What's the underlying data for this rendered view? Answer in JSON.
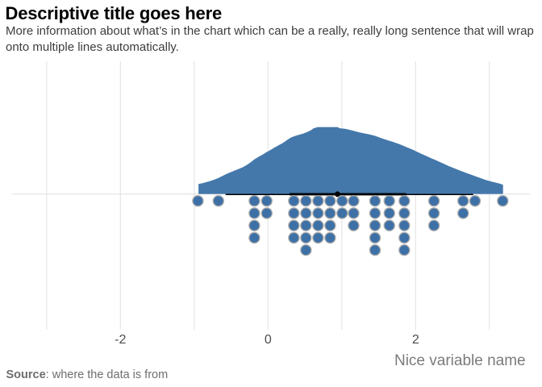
{
  "header": {
    "title": "Descriptive title goes here",
    "subtitle": "More information about what’s in the chart which can be a really, really long sentence that will wrap onto multiple lines automatically.",
    "subtitle_lines": [
      "More information about what’s in the chart which can be a really, really long sentence that will wrap",
      "onto multiple lines automatically."
    ]
  },
  "footer": {
    "source_label": "Source",
    "source_text": ": where the data is from"
  },
  "chart_data": {
    "type": "area",
    "subtype": "raincloud: half-eye density curve + median/interval line + stacked dot plot (side = bottom)",
    "title": "Descriptive title goes here",
    "xlabel": "Nice variable name",
    "ylabel": "",
    "x_axis": {
      "tick_values": [
        -2,
        0,
        2
      ],
      "tick_labels": [
        "-2",
        "0",
        "2"
      ],
      "gridline_values": [
        -3,
        -2,
        -1,
        0,
        1,
        2,
        3
      ],
      "xlim": [
        -3.47,
        3.55
      ],
      "grid": "vertical gridlines plus one horizontal gridline at the dot/density baseline"
    },
    "colors": {
      "density_fill": "#4478ab",
      "dot_fill": "#3d70a6",
      "dot_stroke": "#a9a9a9",
      "interval_line": "#000000",
      "median_point": "#000000",
      "gridline": "#e5e5e5",
      "background": "#ffffff"
    },
    "density": {
      "bandwidth_hint": 0.35,
      "x": [
        -0.942,
        -0.891,
        -0.836,
        -0.781,
        -0.727,
        -0.672,
        -0.617,
        -0.563,
        -0.508,
        -0.454,
        -0.399,
        -0.344,
        -0.29,
        -0.235,
        -0.18,
        -0.126,
        -0.071,
        -0.016,
        0.038,
        0.093,
        0.148,
        0.202,
        0.257,
        0.311,
        0.366,
        0.421,
        0.475,
        0.53,
        0.585,
        0.617,
        0.672,
        0.749,
        0.803,
        0.858,
        0.913,
        0.945,
        0.967,
        1.044,
        1.077,
        1.131,
        1.186,
        1.24,
        1.295,
        1.35,
        1.404,
        1.459,
        1.514,
        1.568,
        1.623,
        1.678,
        1.732,
        1.787,
        1.842,
        1.896,
        1.951,
        2.005,
        2.06,
        2.115,
        2.169,
        2.224,
        2.279,
        2.333,
        2.388,
        2.443,
        2.497,
        2.552,
        2.607,
        2.661,
        2.716,
        2.77,
        2.825,
        2.88,
        2.934,
        2.989,
        3.044,
        3.098,
        3.153,
        3.185
      ],
      "h": [
        0.148,
        0.162,
        0.177,
        0.194,
        0.215,
        0.24,
        0.27,
        0.299,
        0.325,
        0.349,
        0.373,
        0.399,
        0.432,
        0.475,
        0.521,
        0.557,
        0.59,
        0.628,
        0.662,
        0.697,
        0.73,
        0.764,
        0.806,
        0.844,
        0.867,
        0.885,
        0.903,
        0.925,
        0.954,
        0.982,
        1.0,
        1.0,
        1.0,
        1.0,
        1.0,
        1.0,
        0.983,
        0.974,
        0.966,
        0.952,
        0.936,
        0.921,
        0.909,
        0.896,
        0.882,
        0.865,
        0.843,
        0.822,
        0.803,
        0.784,
        0.764,
        0.742,
        0.717,
        0.692,
        0.666,
        0.638,
        0.61,
        0.582,
        0.555,
        0.529,
        0.503,
        0.476,
        0.448,
        0.42,
        0.395,
        0.371,
        0.348,
        0.325,
        0.303,
        0.281,
        0.259,
        0.237,
        0.216,
        0.197,
        0.181,
        0.166,
        0.151,
        0.137
      ]
    },
    "point_interval": {
      "median": 0.941,
      "interval_thick": [
        0.29,
        1.874
      ],
      "interval_thin": [
        -0.575,
        2.78
      ]
    },
    "dots": {
      "side": "bottom",
      "total": 50,
      "stacks": [
        {
          "x": -0.95,
          "count": 1
        },
        {
          "x": -0.672,
          "count": 1
        },
        {
          "x": -0.185,
          "count": 4
        },
        {
          "x": -0.017,
          "count": 2
        },
        {
          "x": 0.35,
          "count": 4
        },
        {
          "x": 0.514,
          "count": 5
        },
        {
          "x": 0.678,
          "count": 4
        },
        {
          "x": 0.842,
          "count": 4
        },
        {
          "x": 1.005,
          "count": 2
        },
        {
          "x": 1.16,
          "count": 3
        },
        {
          "x": 1.45,
          "count": 5
        },
        {
          "x": 1.644,
          "count": 3
        },
        {
          "x": 1.847,
          "count": 5
        },
        {
          "x": 2.249,
          "count": 3
        },
        {
          "x": 2.644,
          "count": 2
        },
        {
          "x": 2.805,
          "count": 1
        },
        {
          "x": 3.18,
          "count": 1
        }
      ]
    }
  }
}
